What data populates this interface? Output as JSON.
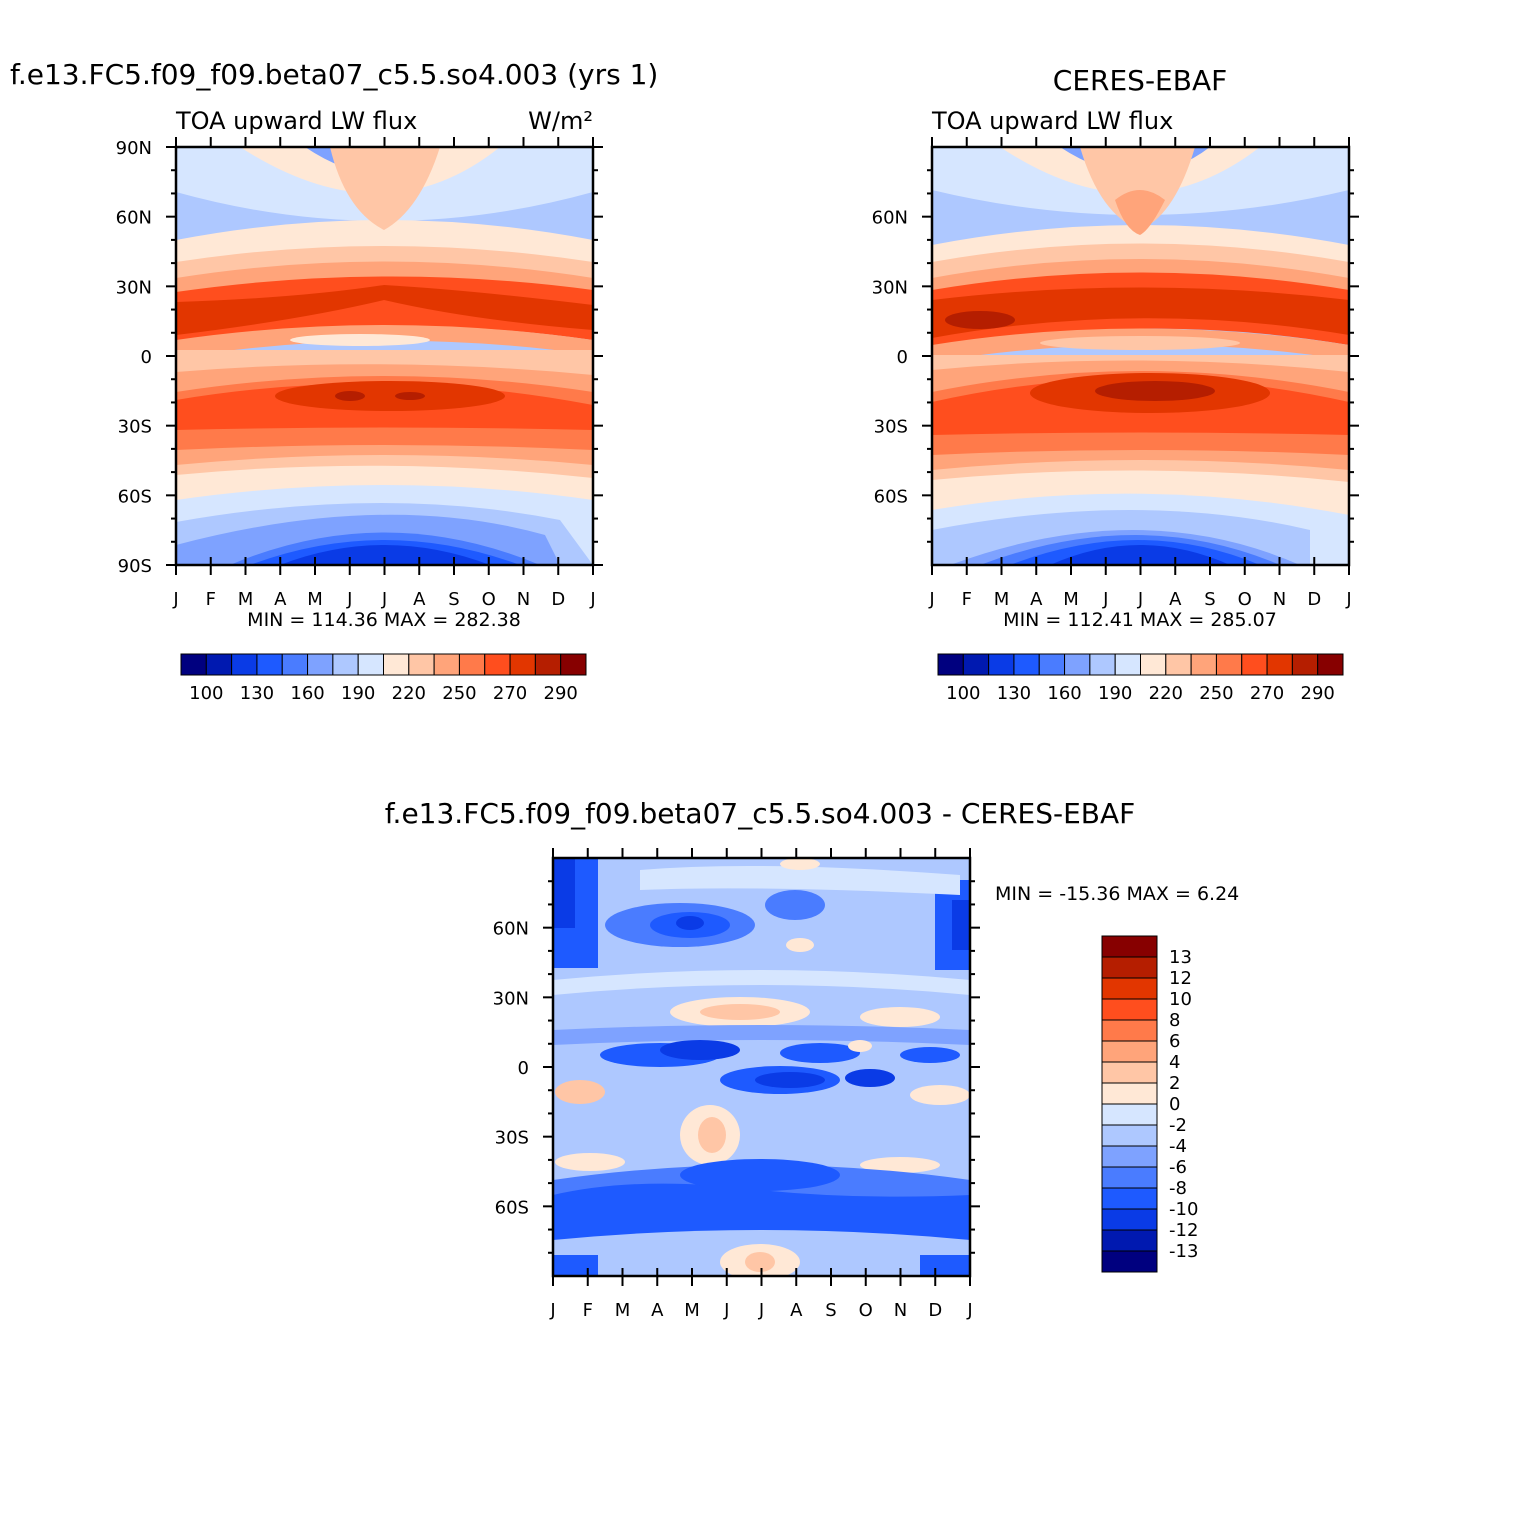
{
  "chart_data": [
    {
      "type": "heatmap",
      "id": "model",
      "title": "f.e13.FC5.f09_f09.beta07_c5.5.so4.003 (yrs 1)",
      "subtitle_left": "TOA upward LW flux",
      "units": "W/m²",
      "x_tick_labels": [
        "J",
        "F",
        "M",
        "A",
        "M",
        "J",
        "J",
        "A",
        "S",
        "O",
        "N",
        "D",
        "J"
      ],
      "y_tick_labels": [
        "90N",
        "60N",
        "30N",
        "0",
        "30S",
        "60S",
        "90S"
      ],
      "ylim": [
        -90,
        90
      ],
      "stats": {
        "min_label": "MIN =",
        "min": "114.36",
        "max_label": "MAX =",
        "max": "282.38"
      },
      "colorbar_labels": [
        "100",
        "130",
        "160",
        "190",
        "220",
        "250",
        "270",
        "290"
      ],
      "colorbar_colors": [
        "#00007f",
        "#0019b0",
        "#0a3be6",
        "#1e5aff",
        "#4a7cff",
        "#7ea2ff",
        "#aec8ff",
        "#d6e6ff",
        "#ffe8d6",
        "#ffc6a6",
        "#ffa47a",
        "#ff7a4a",
        "#ff4e1e",
        "#e23600",
        "#b51e00",
        "#870000"
      ]
    },
    {
      "type": "heatmap",
      "id": "obs",
      "title": "CERES-EBAF",
      "subtitle_left": "TOA upward LW flux",
      "x_tick_labels": [
        "J",
        "F",
        "M",
        "A",
        "M",
        "J",
        "J",
        "A",
        "S",
        "O",
        "N",
        "D",
        "J"
      ],
      "y_tick_labels": [
        "60N",
        "30N",
        "0",
        "30S",
        "60S"
      ],
      "ylim": [
        -90,
        90
      ],
      "stats": {
        "min_label": "MIN =",
        "min": "112.41",
        "max_label": "MAX =",
        "max": "285.07"
      },
      "colorbar_labels": [
        "100",
        "130",
        "160",
        "190",
        "220",
        "250",
        "270",
        "290"
      ],
      "colorbar_colors": [
        "#00007f",
        "#0019b0",
        "#0a3be6",
        "#1e5aff",
        "#4a7cff",
        "#7ea2ff",
        "#aec8ff",
        "#d6e6ff",
        "#ffe8d6",
        "#ffc6a6",
        "#ffa47a",
        "#ff7a4a",
        "#ff4e1e",
        "#e23600",
        "#b51e00",
        "#870000"
      ]
    },
    {
      "type": "heatmap",
      "id": "diff",
      "title": "f.e13.FC5.f09_f09.beta07_c5.5.so4.003 - CERES-EBAF",
      "x_tick_labels": [
        "J",
        "F",
        "M",
        "A",
        "M",
        "J",
        "J",
        "A",
        "S",
        "O",
        "N",
        "D",
        "J"
      ],
      "y_tick_labels": [
        "60N",
        "30N",
        "0",
        "30S",
        "60S"
      ],
      "ylim": [
        -90,
        90
      ],
      "stats": {
        "min_label": "MIN =",
        "min": "-15.36",
        "max_label": "MAX =",
        "max": "6.24"
      },
      "colorbar_labels": [
        "13",
        "12",
        "10",
        "8",
        "6",
        "4",
        "2",
        "0",
        "-2",
        "-4",
        "-6",
        "-8",
        "-10",
        "-12",
        "-13"
      ],
      "colorbar_colors": [
        "#870000",
        "#b51e00",
        "#e23600",
        "#ff4e1e",
        "#ff7a4a",
        "#ffa47a",
        "#ffc6a6",
        "#ffe8d6",
        "#d6e6ff",
        "#aec8ff",
        "#7ea2ff",
        "#4a7cff",
        "#1e5aff",
        "#0a3be6",
        "#0019b0",
        "#00007f"
      ]
    }
  ]
}
